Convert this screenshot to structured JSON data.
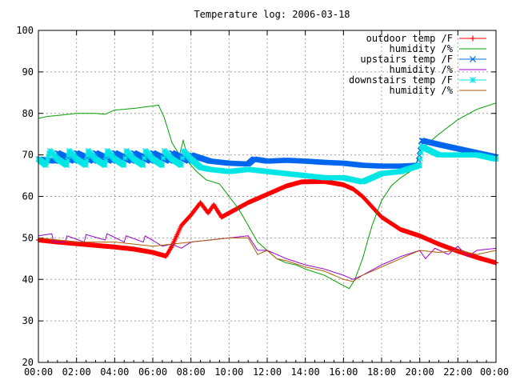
{
  "chart_data": {
    "type": "line",
    "title": "Temperature log: 2006-03-18",
    "xlabel": "",
    "ylabel": "",
    "xlim": [
      0,
      24
    ],
    "ylim": [
      20,
      100
    ],
    "grid": true,
    "legend_position": "top-right",
    "xticks": [
      {
        "v": 0,
        "label": "00:00"
      },
      {
        "v": 2,
        "label": "02:00"
      },
      {
        "v": 4,
        "label": "04:00"
      },
      {
        "v": 6,
        "label": "06:00"
      },
      {
        "v": 8,
        "label": "08:00"
      },
      {
        "v": 10,
        "label": "10:00"
      },
      {
        "v": 12,
        "label": "12:00"
      },
      {
        "v": 14,
        "label": "14:00"
      },
      {
        "v": 16,
        "label": "16:00"
      },
      {
        "v": 18,
        "label": "18:00"
      },
      {
        "v": 20,
        "label": "20:00"
      },
      {
        "v": 22,
        "label": "22:00"
      },
      {
        "v": 24,
        "label": "00:00"
      }
    ],
    "yticks": [
      {
        "v": 20,
        "label": "20"
      },
      {
        "v": 30,
        "label": "30"
      },
      {
        "v": 40,
        "label": "40"
      },
      {
        "v": 50,
        "label": "50"
      },
      {
        "v": 60,
        "label": "60"
      },
      {
        "v": 70,
        "label": "70"
      },
      {
        "v": 80,
        "label": "80"
      },
      {
        "v": 90,
        "label": "90"
      },
      {
        "v": 100,
        "label": "100"
      }
    ],
    "series": [
      {
        "name": "outdoor temp /F",
        "color": "#ff0000",
        "marker": "plus",
        "style": "points",
        "points": [
          [
            0,
            49.5
          ],
          [
            1,
            49
          ],
          [
            2,
            48.6
          ],
          [
            3,
            48.2
          ],
          [
            4,
            47.8
          ],
          [
            5,
            47.3
          ],
          [
            6,
            46.5
          ],
          [
            6.7,
            45.6
          ],
          [
            7,
            48
          ],
          [
            7.5,
            53
          ],
          [
            8,
            55.5
          ],
          [
            8.5,
            58.5
          ],
          [
            8.9,
            56
          ],
          [
            9.2,
            58
          ],
          [
            9.6,
            55
          ],
          [
            10.2,
            56.5
          ],
          [
            11,
            58.5
          ],
          [
            12,
            60.5
          ],
          [
            13,
            62.5
          ],
          [
            13.8,
            63.5
          ],
          [
            15,
            63.6
          ],
          [
            16,
            62.8
          ],
          [
            16.5,
            61.8
          ],
          [
            17,
            60
          ],
          [
            17.5,
            57.5
          ],
          [
            18,
            55
          ],
          [
            19,
            52
          ],
          [
            20,
            50.5
          ],
          [
            21,
            48.5
          ],
          [
            22,
            46.8
          ],
          [
            23,
            45.3
          ],
          [
            24,
            44
          ]
        ]
      },
      {
        "name": "humidity /%",
        "color": "#00a000",
        "marker": "",
        "style": "line",
        "points": [
          [
            0,
            78.8
          ],
          [
            0.5,
            79.3
          ],
          [
            1,
            79.5
          ],
          [
            2,
            80
          ],
          [
            3,
            80
          ],
          [
            3.5,
            79.8
          ],
          [
            4,
            80.8
          ],
          [
            5,
            81.2
          ],
          [
            6,
            81.8
          ],
          [
            6.3,
            82
          ],
          [
            6.6,
            79
          ],
          [
            7,
            73
          ],
          [
            7.4,
            70
          ],
          [
            7.6,
            73.5
          ],
          [
            7.9,
            68
          ],
          [
            8.3,
            66
          ],
          [
            8.8,
            64
          ],
          [
            9.5,
            63
          ],
          [
            10,
            60
          ],
          [
            10.5,
            57
          ],
          [
            11,
            53
          ],
          [
            11.5,
            49
          ],
          [
            12,
            47
          ],
          [
            12.5,
            45
          ],
          [
            13,
            44
          ],
          [
            13.5,
            43.5
          ],
          [
            14,
            42.5
          ],
          [
            15,
            41
          ],
          [
            16,
            38.5
          ],
          [
            16.3,
            37.8
          ],
          [
            16.6,
            40
          ],
          [
            17,
            45
          ],
          [
            17.5,
            53
          ],
          [
            18,
            59
          ],
          [
            18.5,
            62.5
          ],
          [
            19,
            64.5
          ],
          [
            19.5,
            66
          ],
          [
            19.8,
            67.5
          ],
          [
            20,
            71
          ],
          [
            21,
            75
          ],
          [
            22,
            78.5
          ],
          [
            23,
            81
          ],
          [
            24,
            82.5
          ]
        ]
      },
      {
        "name": "upstairs temp /F",
        "color": "#0066ee",
        "marker": "cross",
        "style": "points",
        "points": [
          [
            0,
            69
          ],
          [
            0.9,
            68.5
          ],
          [
            1,
            70.5
          ],
          [
            1.9,
            68.5
          ],
          [
            2,
            70.5
          ],
          [
            2.9,
            68.5
          ],
          [
            3,
            70.5
          ],
          [
            3.9,
            68.5
          ],
          [
            4,
            70.5
          ],
          [
            4.9,
            68.5
          ],
          [
            5,
            70.5
          ],
          [
            5.9,
            68.5
          ],
          [
            6,
            70.5
          ],
          [
            6.9,
            68.5
          ],
          [
            7,
            70.5
          ],
          [
            7.9,
            68.5
          ],
          [
            8,
            70
          ],
          [
            9,
            68.5
          ],
          [
            10,
            68
          ],
          [
            11,
            67.8
          ],
          [
            11.3,
            69
          ],
          [
            12,
            68.5
          ],
          [
            13,
            68.7
          ],
          [
            14,
            68.5
          ],
          [
            15,
            68.2
          ],
          [
            16,
            68
          ],
          [
            17,
            67.5
          ],
          [
            18,
            67.3
          ],
          [
            19,
            67.3
          ],
          [
            19.9,
            67.5
          ],
          [
            20.1,
            73.5
          ],
          [
            21,
            72.5
          ],
          [
            22,
            71.5
          ],
          [
            23,
            70.5
          ],
          [
            24,
            69.5
          ]
        ]
      },
      {
        "name": "humidity /%",
        "color": "#9900cc",
        "marker": "",
        "style": "line",
        "points": [
          [
            0,
            50.5
          ],
          [
            0.7,
            51
          ],
          [
            0.8,
            49
          ],
          [
            1.4,
            49
          ],
          [
            1.5,
            50.5
          ],
          [
            2.4,
            49
          ],
          [
            2.5,
            50.8
          ],
          [
            3.5,
            49.5
          ],
          [
            3.6,
            51
          ],
          [
            4.5,
            49
          ],
          [
            4.6,
            50.5
          ],
          [
            5.5,
            49
          ],
          [
            5.6,
            50.5
          ],
          [
            6.5,
            48
          ],
          [
            7,
            48.5
          ],
          [
            7.5,
            47.5
          ],
          [
            8,
            49
          ],
          [
            9,
            49.5
          ],
          [
            10,
            50
          ],
          [
            11,
            50.5
          ],
          [
            11.5,
            47
          ],
          [
            12,
            47
          ],
          [
            12.5,
            46
          ],
          [
            13,
            45
          ],
          [
            14,
            43.5
          ],
          [
            15,
            42.5
          ],
          [
            16,
            41
          ],
          [
            16.5,
            40
          ],
          [
            17,
            41
          ],
          [
            18,
            43.5
          ],
          [
            19,
            45.5
          ],
          [
            20,
            47
          ],
          [
            20.3,
            45
          ],
          [
            20.8,
            47.5
          ],
          [
            21.5,
            46
          ],
          [
            22,
            48
          ],
          [
            22.5,
            45.5
          ],
          [
            23,
            47
          ],
          [
            24,
            47.5
          ]
        ]
      },
      {
        "name": "downstairs temp /F",
        "color": "#00e5e5",
        "marker": "star",
        "style": "points",
        "points": [
          [
            0,
            69
          ],
          [
            0.4,
            67.5
          ],
          [
            0.6,
            71
          ],
          [
            1,
            69
          ],
          [
            1.5,
            67.5
          ],
          [
            1.6,
            71
          ],
          [
            2,
            69
          ],
          [
            2.5,
            67.5
          ],
          [
            2.6,
            71
          ],
          [
            3,
            69
          ],
          [
            3.5,
            67.5
          ],
          [
            3.6,
            71
          ],
          [
            4,
            69
          ],
          [
            4.5,
            67.5
          ],
          [
            4.6,
            71
          ],
          [
            5,
            69
          ],
          [
            5.5,
            67.5
          ],
          [
            5.6,
            71
          ],
          [
            6,
            69
          ],
          [
            6.5,
            67.5
          ],
          [
            6.6,
            71
          ],
          [
            7,
            69
          ],
          [
            7.5,
            67.5
          ],
          [
            7.6,
            71
          ],
          [
            8,
            69
          ],
          [
            8.5,
            67
          ],
          [
            9,
            66.5
          ],
          [
            10,
            66
          ],
          [
            11,
            66.5
          ],
          [
            12,
            66
          ],
          [
            13,
            65.5
          ],
          [
            14,
            65
          ],
          [
            15,
            64.5
          ],
          [
            16,
            64.5
          ],
          [
            17,
            63.5
          ],
          [
            18,
            65.5
          ],
          [
            19,
            66
          ],
          [
            20,
            67.5
          ],
          [
            20.1,
            72
          ],
          [
            21,
            70
          ],
          [
            22,
            70
          ],
          [
            23,
            70
          ],
          [
            24,
            69
          ]
        ]
      },
      {
        "name": "humidity /%",
        "color": "#b05a00",
        "marker": "",
        "style": "line",
        "points": [
          [
            0,
            50
          ],
          [
            1,
            49.5
          ],
          [
            2,
            49
          ],
          [
            3,
            49
          ],
          [
            4,
            49
          ],
          [
            5,
            48.5
          ],
          [
            6,
            48
          ],
          [
            7,
            48.5
          ],
          [
            8,
            49
          ],
          [
            9,
            49.5
          ],
          [
            10,
            50
          ],
          [
            11,
            50
          ],
          [
            11.5,
            46
          ],
          [
            12,
            47
          ],
          [
            12.5,
            45
          ],
          [
            13,
            44.5
          ],
          [
            14,
            43
          ],
          [
            15,
            42
          ],
          [
            16,
            40
          ],
          [
            16.5,
            39.5
          ],
          [
            17,
            41
          ],
          [
            18,
            43
          ],
          [
            19,
            45
          ],
          [
            20,
            47
          ],
          [
            21,
            46.5
          ],
          [
            22,
            47
          ],
          [
            23,
            46
          ],
          [
            24,
            47
          ]
        ]
      }
    ]
  }
}
